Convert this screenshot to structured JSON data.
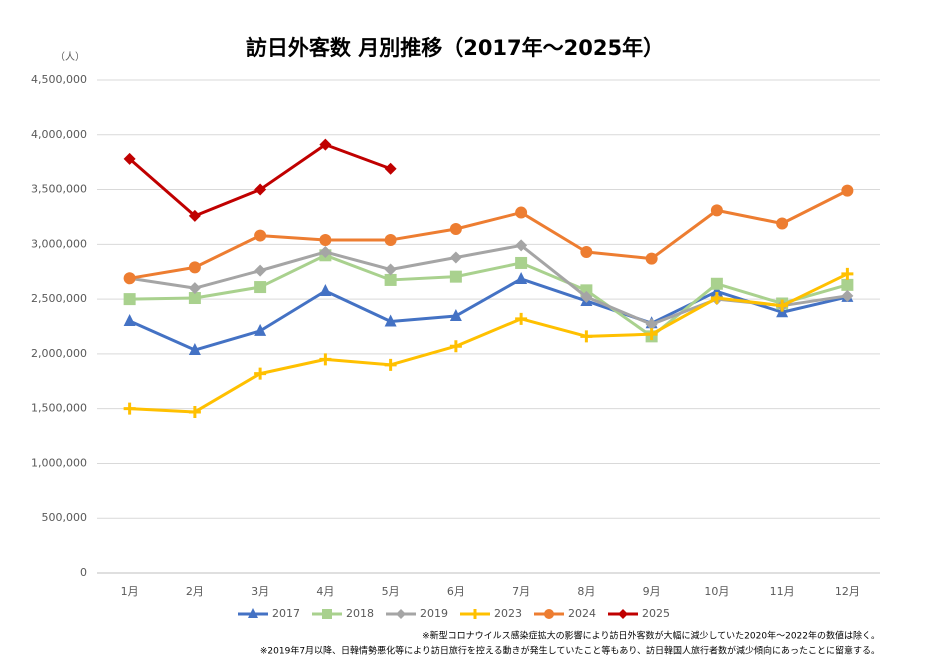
{
  "chart_data": {
    "type": "line",
    "title": "訪日外客数 月別推移（2017年～2025年）",
    "y_unit": "（人）",
    "categories": [
      "1月",
      "2月",
      "3月",
      "4月",
      "5月",
      "6月",
      "7月",
      "8月",
      "9月",
      "10月",
      "11月",
      "12月"
    ],
    "ylim": [
      0,
      4500000
    ],
    "yticks": [
      0,
      {
        "value": 500000,
        "label": "500,000"
      },
      {
        "value": 1000000,
        "label": "1,000,000"
      },
      {
        "value": 1500000,
        "label": "1,500,000"
      },
      {
        "value": 2000000,
        "label": "2,000,000"
      },
      {
        "value": 2500000,
        "label": "2,500,000"
      },
      {
        "value": 3000000,
        "label": "3,000,000"
      },
      {
        "value": 3500000,
        "label": "3,500,000"
      },
      {
        "value": 4000000,
        "label": "4,000,000"
      },
      {
        "value": 4500000,
        "label": "4,500,000"
      }
    ],
    "grid": true,
    "legend": "bottom",
    "series": [
      {
        "name": "2017",
        "color": "#4472c4",
        "marker": "triangle",
        "values": [
          2300000,
          2035000,
          2210000,
          2574000,
          2296000,
          2346000,
          2684000,
          2483000,
          2280000,
          2570000,
          2380000,
          2520000
        ]
      },
      {
        "name": "2018",
        "color": "#a9d18e",
        "marker": "square",
        "values": [
          2500000,
          2510000,
          2610000,
          2900000,
          2675000,
          2705000,
          2830000,
          2580000,
          2160000,
          2640000,
          2460000,
          2630000
        ]
      },
      {
        "name": "2019",
        "color": "#a5a5a5",
        "marker": "diamond",
        "values": [
          2690000,
          2600000,
          2760000,
          2930000,
          2770000,
          2880000,
          2990000,
          2520000,
          2270000,
          2500000,
          2440000,
          2530000
        ]
      },
      {
        "name": "2023",
        "color": "#ffc000",
        "marker": "plus",
        "values": [
          1500000,
          1470000,
          1820000,
          1950000,
          1900000,
          2070000,
          2320000,
          2160000,
          2180000,
          2510000,
          2440000,
          2730000
        ]
      },
      {
        "name": "2024",
        "color": "#ed7d31",
        "marker": "circle",
        "values": [
          2690000,
          2790000,
          3080000,
          3040000,
          3040000,
          3140000,
          3290000,
          2930000,
          2870000,
          3310000,
          3190000,
          3490000
        ]
      },
      {
        "name": "2025",
        "color": "#c00000",
        "marker": "diamond",
        "values": [
          3780000,
          3260000,
          3500000,
          3910000,
          3690000,
          null,
          null,
          null,
          null,
          null,
          null,
          null
        ]
      }
    ],
    "notes": [
      "※新型コロナウイルス感染症拡大の影響により訪日外客数が大幅に減少していた2020年～2022年の数値は除く。",
      "※2019年7月以降、日韓情勢悪化等により訪日旅行を控える動きが発生していたこと等もあり、訪日韓国人旅行者数が減少傾向にあったことに留意する。"
    ]
  }
}
